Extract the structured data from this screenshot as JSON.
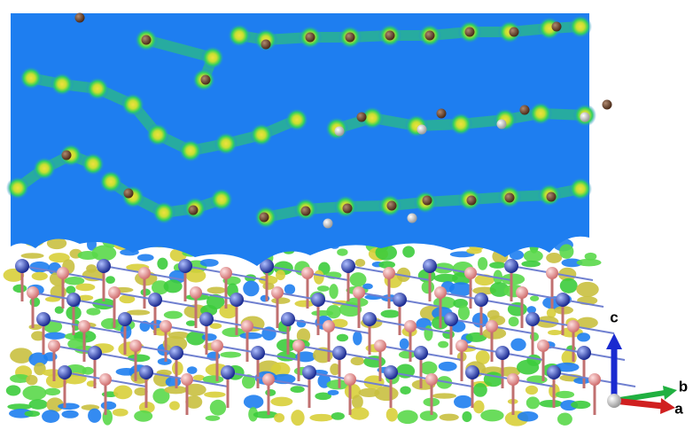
{
  "axis_labels": {
    "c": "c",
    "b": "b",
    "a": "a"
  }
}
